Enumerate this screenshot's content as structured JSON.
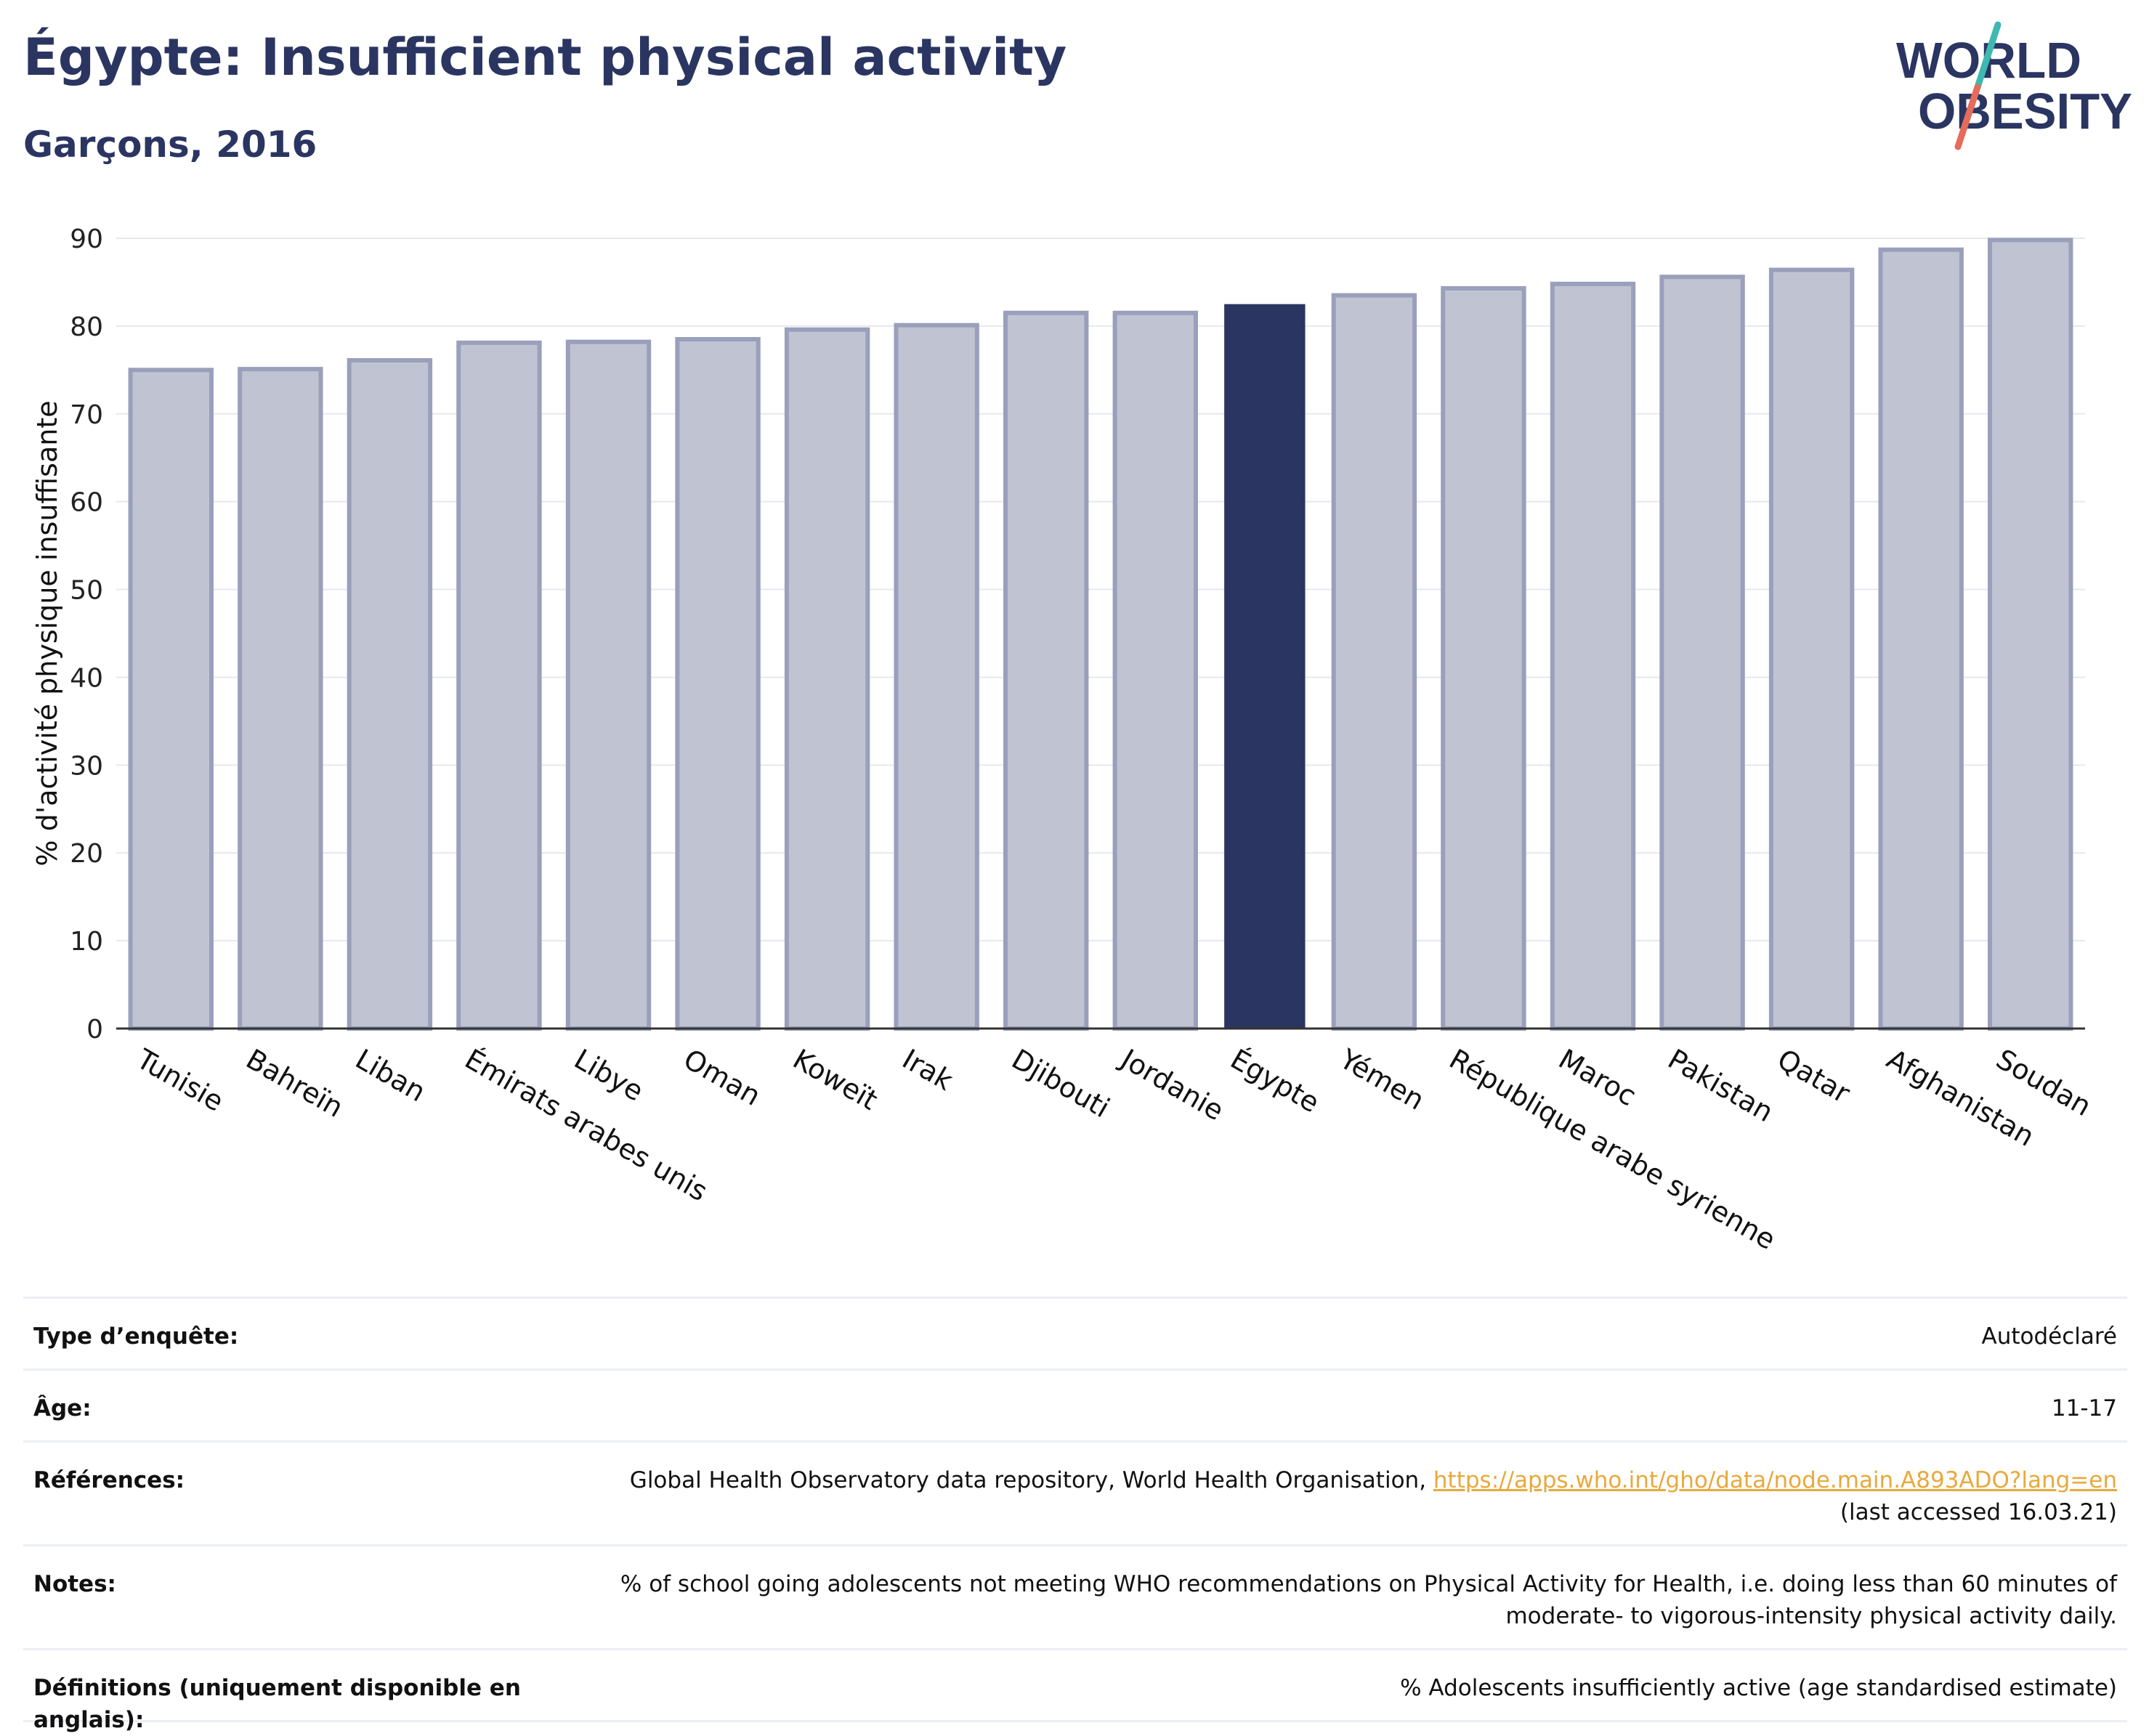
{
  "header": {
    "title": "Égypte: Insufficient physical activity",
    "subtitle": "Garçons, 2016"
  },
  "logo": {
    "line1": "WORLD",
    "line2": "OBESITY"
  },
  "chart_data": {
    "type": "bar",
    "title": "Égypte: Insufficient physical activity",
    "subtitle": "Garçons, 2016",
    "ylabel": "% d'activité physique insuffisante",
    "xlabel": "",
    "ylim": [
      0,
      90
    ],
    "yticks": [
      0,
      10,
      20,
      30,
      40,
      50,
      60,
      70,
      80,
      90
    ],
    "grid": true,
    "highlight": "Égypte",
    "colors": {
      "bar": "#c0c3d1",
      "bar_edge": "#9aa0bb",
      "highlight": "#2b3561"
    },
    "categories": [
      "Tunisie",
      "Bahreïn",
      "Liban",
      "Émirats arabes unis",
      "Libye",
      "Oman",
      "Koweït",
      "Irak",
      "Djibouti",
      "Jordanie",
      "Égypte",
      "Yémen",
      "République arabe syrienne",
      "Maroc",
      "Pakistan",
      "Qatar",
      "Afghanistan",
      "Soudan"
    ],
    "values": [
      75.0,
      75.1,
      76.1,
      78.1,
      78.2,
      78.5,
      79.6,
      80.1,
      81.5,
      81.5,
      82.5,
      83.5,
      84.3,
      84.8,
      85.6,
      86.4,
      88.7,
      89.8
    ]
  },
  "footer": {
    "survey_type_label": "Type d’enquête:",
    "survey_type_value": "Autodéclaré",
    "age_label": "Âge:",
    "age_value": "11-17",
    "references_label": "Références:",
    "references_text": "Global Health Observatory data repository, World Health Organisation,",
    "references_link": "https://apps.who.int/gho/data/node.main.A893ADO?lang=en",
    "references_accessed": "(last accessed 16.03.21)",
    "notes_label": "Notes:",
    "notes_value": "% of school going adolescents not meeting WHO recommendations on Physical Activity for Health, i.e. doing less than 60 minutes of moderate- to vigorous-intensity physical activity daily.",
    "definitions_label": "Définitions (uniquement disponible en anglais):",
    "definitions_value": "% Adolescents insufficiently active (age standardised estimate)"
  }
}
